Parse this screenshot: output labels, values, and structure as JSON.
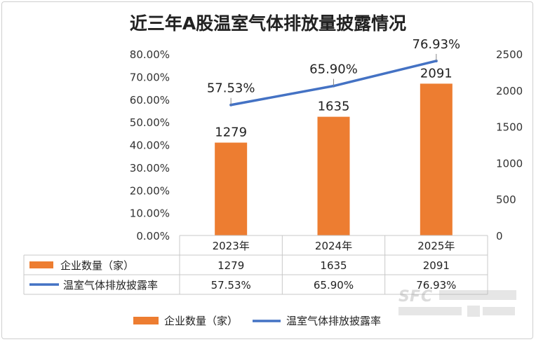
{
  "chart_data": {
    "type": "bar",
    "title": "近三年A股温室气体排放量披露情况",
    "categories": [
      "2023年",
      "2024年",
      "2025年"
    ],
    "series": [
      {
        "name": "企业数量（家）",
        "type": "bar",
        "axis": "right",
        "color": "#ED7D31",
        "values": [
          1279,
          1635,
          2091
        ],
        "display": [
          "1279",
          "1635",
          "2091"
        ]
      },
      {
        "name": "温室气体排放披露率",
        "type": "line",
        "axis": "left",
        "color": "#4472C4",
        "values": [
          57.53,
          65.9,
          76.93
        ],
        "display": [
          "57.53%",
          "65.90%",
          "76.93%"
        ]
      }
    ],
    "y_left": {
      "ylim": [
        0,
        80
      ],
      "ticks": [
        "0.00%",
        "10.00%",
        "20.00%",
        "30.00%",
        "40.00%",
        "50.00%",
        "60.00%",
        "70.00%",
        "80.00%"
      ]
    },
    "y_right": {
      "ylim": [
        0,
        2500
      ],
      "ticks": [
        "0",
        "500",
        "1000",
        "1500",
        "2000",
        "2500"
      ]
    },
    "data_table": true,
    "legend_position": "bottom",
    "grid": false
  },
  "watermark": {
    "logo": "SFC",
    "text": "南方财经全媒体集团 21世纪经济报道"
  }
}
